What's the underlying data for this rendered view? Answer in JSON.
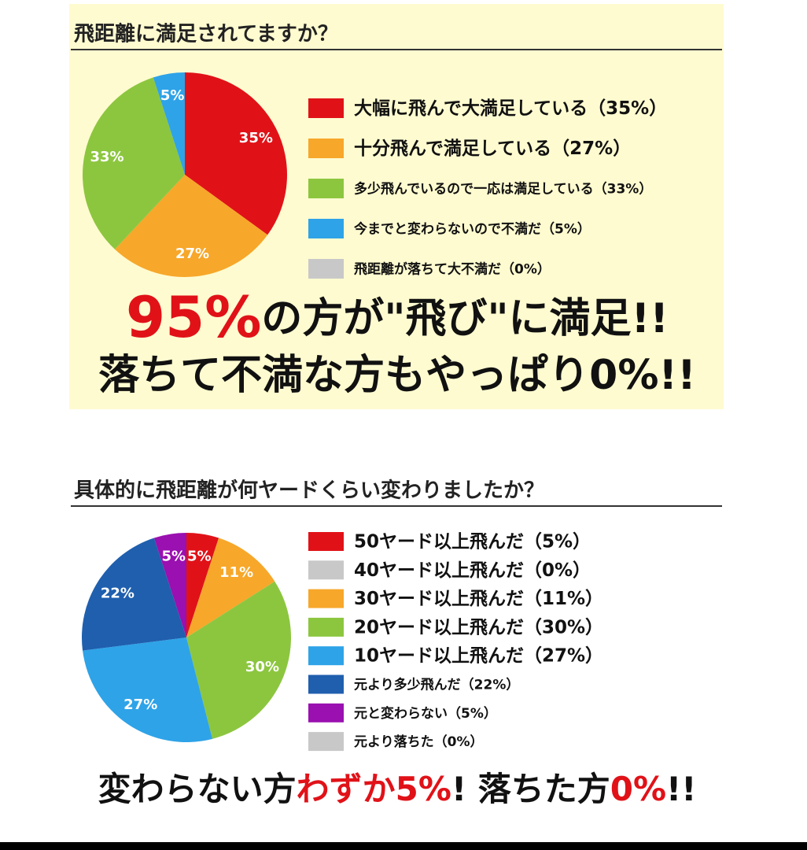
{
  "chart_data": [
    {
      "type": "pie",
      "title": "飛距離に満足されてますか？",
      "categories": [
        "大幅に飛んで大満足している（35%）",
        "十分飛んで満足している（27%）",
        "多少飛んでいるので一応は満足している（33%）",
        "今までと変わらないので不満だ（5%）",
        "飛距離が落ちて大不満だ（0%）"
      ],
      "values": [
        35,
        27,
        33,
        5,
        0
      ],
      "value_labels": [
        "35%",
        "27%",
        "33%",
        "5%",
        null
      ],
      "colors": [
        "#e01218",
        "#f7a72a",
        "#8cc63f",
        "#2ea3e8",
        "#c8c8c8"
      ],
      "annotations": [
        [
          {
            "text": "95%",
            "color": "#e01218"
          },
          {
            "text": "の方が\"飛び\"に満足!!",
            "color": "#111111"
          }
        ],
        [
          {
            "text": "落ちて不満な方もやっぱり0%!!",
            "color": "#111111"
          }
        ]
      ]
    },
    {
      "type": "pie",
      "title": "具体的に飛距離が何ヤードくらい変わりましたか？",
      "categories": [
        "50ヤード以上飛んだ（5%）",
        "40ヤード以上飛んだ（0%）",
        "30ヤード以上飛んだ（11%）",
        "20ヤード以上飛んだ（30%）",
        "10ヤード以上飛んだ（27%）",
        "元より多少飛んだ（22%）",
        "元と変わらない（5%）",
        "元より落ちた（0%）"
      ],
      "values": [
        5,
        0,
        11,
        30,
        27,
        22,
        5,
        0
      ],
      "value_labels": [
        "5%",
        null,
        "11%",
        "30%",
        "27%",
        "22%",
        "5%",
        null
      ],
      "colors": [
        "#e01218",
        "#c8c8c8",
        "#f7a72a",
        "#8cc63f",
        "#2ea3e8",
        "#1f5fae",
        "#9a10b0",
        "#c8c8c8"
      ],
      "annotations": [
        [
          {
            "text": "変わらない方",
            "color": "#111111"
          },
          {
            "text": "わずか5%",
            "color": "#e01218"
          },
          {
            "text": "! 落ちた方",
            "color": "#111111"
          },
          {
            "text": "0%",
            "color": "#e01218"
          },
          {
            "text": "!!",
            "color": "#111111"
          }
        ]
      ]
    }
  ]
}
